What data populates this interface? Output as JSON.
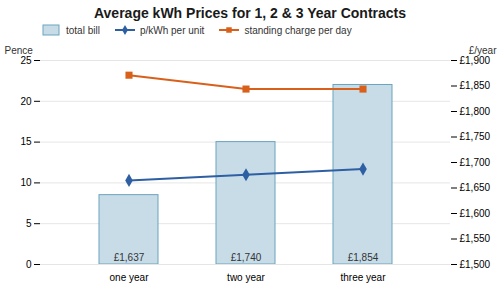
{
  "chart_data": {
    "type": "bar",
    "title": "Average kWh Prices for 1, 2 & 3 Year Contracts",
    "categories": [
      "one year",
      "two year",
      "three year"
    ],
    "series": [
      {
        "name": "total bill",
        "type": "bar",
        "color": "#c8dce8",
        "values": [
          8.5,
          15.0,
          22.0
        ]
      },
      {
        "name": "p/kWh per unit",
        "type": "line",
        "color": "#2e5fa3",
        "marker": "diamond",
        "values": [
          10.3,
          11.0,
          11.7
        ]
      },
      {
        "name": "standing charge per day",
        "type": "line",
        "color": "#d9601a",
        "marker": "square",
        "values": [
          23.2,
          21.5,
          21.5
        ]
      }
    ],
    "annotations": [
      {
        "text": "£1,637",
        "x": "one year",
        "y": 0.4
      },
      {
        "text": "£1,740",
        "x": "two year",
        "y": 0.4
      },
      {
        "text": "£1,854",
        "x": "three year",
        "y": 0.4
      }
    ],
    "ylabel": "Pence",
    "y2label": "£/year",
    "ylim": [
      0,
      25
    ],
    "yticks": [
      0,
      5,
      10,
      15,
      20,
      25
    ],
    "y2lim": [
      1500,
      1900
    ],
    "y2ticks": [
      {
        "value": 1500,
        "label": "£1,500"
      },
      {
        "value": 1550,
        "label": "£1,550"
      },
      {
        "value": 1600,
        "label": "£1,600"
      },
      {
        "value": 1650,
        "label": "£1,650"
      },
      {
        "value": 1700,
        "label": "£1,700"
      },
      {
        "value": 1750,
        "label": "£1,750"
      },
      {
        "value": 1800,
        "label": "£1,800"
      },
      {
        "value": 1850,
        "label": "£1,850"
      },
      {
        "value": 1900,
        "label": "£1,900"
      }
    ],
    "grid": true,
    "legend": "upper left"
  }
}
